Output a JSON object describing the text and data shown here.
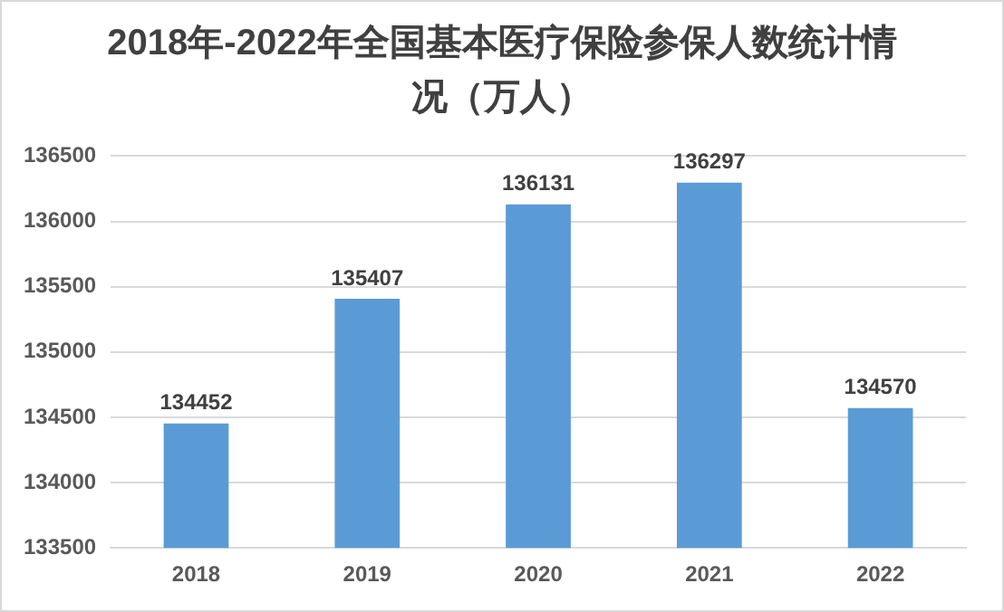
{
  "chart_data": {
    "type": "bar",
    "title": "2018年-2022年全国基本医疗保险参保人数统计情况（万人）",
    "categories": [
      "2018",
      "2019",
      "2020",
      "2021",
      "2022"
    ],
    "values": [
      134452,
      135407,
      136131,
      136297,
      134570
    ],
    "color": "#5b9bd5",
    "ylim": [
      133500,
      136500
    ],
    "yticks": [
      133500,
      134000,
      134500,
      135000,
      135500,
      136000,
      136500
    ],
    "grid": "y",
    "data_labels": true,
    "legend": false
  }
}
